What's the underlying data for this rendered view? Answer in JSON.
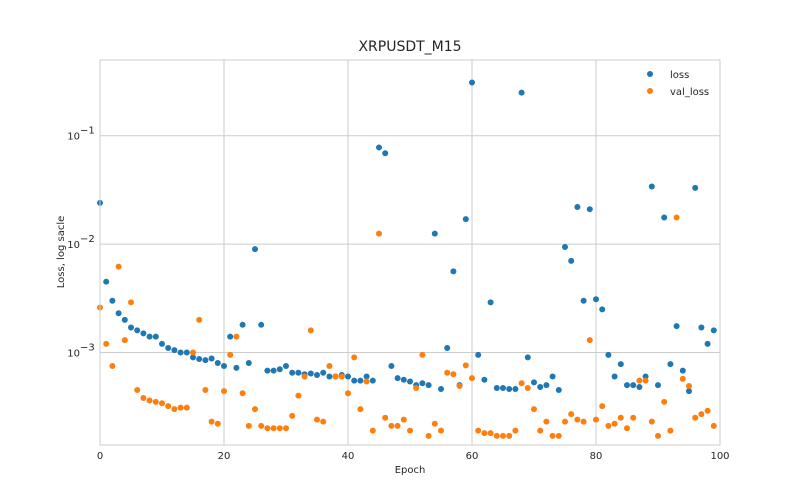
{
  "chart_data": {
    "type": "scatter",
    "title": "XRPUSDT_M15",
    "xlabel": "Epoch",
    "ylabel": "Loss, log sacle",
    "xlim": [
      0,
      100
    ],
    "ylim": [
      0.00014,
      0.5
    ],
    "yscale": "log",
    "grid": true,
    "legend_position": "top-right",
    "x_ticks": [
      0,
      20,
      40,
      60,
      80,
      100
    ],
    "y_ticks": [
      {
        "value": 0.001,
        "base": "10",
        "exp": "−3"
      },
      {
        "value": 0.01,
        "base": "10",
        "exp": "−2"
      },
      {
        "value": 0.1,
        "base": "10",
        "exp": "−1"
      }
    ],
    "colors": {
      "loss": "#1f77b4",
      "val_loss": "#ff7f0e",
      "grid": "#cccccc",
      "spine": "#cccccc"
    },
    "series": [
      {
        "name": "loss",
        "x": [
          0,
          1,
          2,
          3,
          4,
          5,
          6,
          7,
          8,
          9,
          10,
          11,
          12,
          13,
          14,
          15,
          16,
          17,
          18,
          19,
          20,
          21,
          22,
          23,
          24,
          25,
          26,
          27,
          28,
          29,
          30,
          31,
          32,
          33,
          34,
          35,
          36,
          37,
          38,
          39,
          40,
          41,
          42,
          43,
          44,
          45,
          46,
          47,
          48,
          49,
          50,
          51,
          52,
          53,
          54,
          55,
          56,
          57,
          58,
          59,
          60,
          61,
          62,
          63,
          64,
          65,
          66,
          67,
          68,
          69,
          70,
          71,
          72,
          73,
          74,
          75,
          76,
          77,
          78,
          79,
          80,
          81,
          82,
          83,
          84,
          85,
          86,
          87,
          88,
          89,
          90,
          91,
          92,
          93,
          94,
          95,
          96,
          97,
          98,
          99
        ],
        "y": [
          0.024,
          0.0045,
          0.003,
          0.0023,
          0.002,
          0.0017,
          0.0016,
          0.0015,
          0.0014,
          0.0014,
          0.0012,
          0.0011,
          0.00105,
          0.001,
          0.001,
          0.0009,
          0.00087,
          0.00085,
          0.00088,
          0.0008,
          0.00075,
          0.0014,
          0.00072,
          0.0018,
          0.0008,
          0.009,
          0.0018,
          0.00068,
          0.00068,
          0.0007,
          0.00075,
          0.00065,
          0.00065,
          0.00063,
          0.00064,
          0.00062,
          0.00065,
          0.0006,
          0.0006,
          0.00062,
          0.0006,
          0.00055,
          0.00055,
          0.0006,
          0.00055,
          0.078,
          0.069,
          0.00075,
          0.00058,
          0.00056,
          0.00054,
          0.0005,
          0.00052,
          0.0005,
          0.0125,
          0.00046,
          0.0011,
          0.0056,
          0.0005,
          0.017,
          0.31,
          0.00095,
          0.00056,
          0.0029,
          0.00047,
          0.00047,
          0.00046,
          0.00046,
          0.25,
          0.0009,
          0.00053,
          0.00048,
          0.0005,
          0.0006,
          0.00045,
          0.0094,
          0.007,
          0.022,
          0.003,
          0.021,
          0.0031,
          0.0025,
          0.00095,
          0.0006,
          0.00078,
          0.0005,
          0.0005,
          0.00048,
          0.0006,
          0.034,
          0.0005,
          0.0176,
          0.00078,
          0.00175,
          0.00068,
          0.00044,
          0.033,
          0.0017,
          0.0012,
          0.0016
        ]
      },
      {
        "name": "val_loss",
        "x": [
          0,
          1,
          2,
          3,
          4,
          5,
          6,
          7,
          8,
          9,
          10,
          11,
          12,
          13,
          14,
          15,
          16,
          17,
          18,
          19,
          20,
          21,
          22,
          23,
          24,
          25,
          26,
          27,
          28,
          29,
          30,
          31,
          32,
          33,
          34,
          35,
          36,
          37,
          38,
          39,
          40,
          41,
          42,
          43,
          44,
          45,
          46,
          47,
          48,
          49,
          50,
          51,
          52,
          53,
          54,
          55,
          56,
          57,
          58,
          59,
          60,
          61,
          62,
          63,
          64,
          65,
          66,
          67,
          68,
          69,
          70,
          71,
          72,
          73,
          74,
          75,
          76,
          77,
          78,
          79,
          80,
          81,
          82,
          83,
          84,
          85,
          86,
          87,
          88,
          89,
          90,
          91,
          92,
          93,
          94,
          95,
          96,
          97,
          98,
          99
        ],
        "y": [
          0.0026,
          0.0012,
          0.00075,
          0.0062,
          0.0013,
          0.0029,
          0.00045,
          0.00038,
          0.00036,
          0.00035,
          0.00034,
          0.00032,
          0.0003,
          0.00031,
          0.00031,
          0.001,
          0.002,
          0.00045,
          0.00023,
          0.00022,
          0.00044,
          0.00095,
          0.0014,
          0.00042,
          0.00021,
          0.0003,
          0.00021,
          0.0002,
          0.0002,
          0.0002,
          0.0002,
          0.00026,
          0.0004,
          0.0006,
          0.0016,
          0.00024,
          0.00023,
          0.00075,
          0.0006,
          0.0006,
          0.00042,
          0.0009,
          0.0003,
          0.00054,
          0.00019,
          0.0125,
          0.00025,
          0.00021,
          0.00021,
          0.00024,
          0.00019,
          0.00047,
          0.00095,
          0.00017,
          0.00022,
          0.00019,
          0.00065,
          0.00063,
          0.00049,
          0.00076,
          0.00058,
          0.00019,
          0.00018,
          0.00018,
          0.00017,
          0.00017,
          0.00017,
          0.00019,
          0.00052,
          0.00047,
          0.0003,
          0.00019,
          0.00023,
          0.00017,
          0.00017,
          0.00023,
          0.00027,
          0.00024,
          0.00023,
          0.0013,
          0.00024,
          0.00032,
          0.00021,
          0.00022,
          0.00025,
          0.0002,
          0.00025,
          0.00055,
          0.00055,
          0.00023,
          0.00017,
          0.00035,
          0.00019,
          0.0176,
          0.00057,
          0.00049,
          0.00025,
          0.00027,
          0.00029,
          0.00021
        ]
      }
    ]
  }
}
